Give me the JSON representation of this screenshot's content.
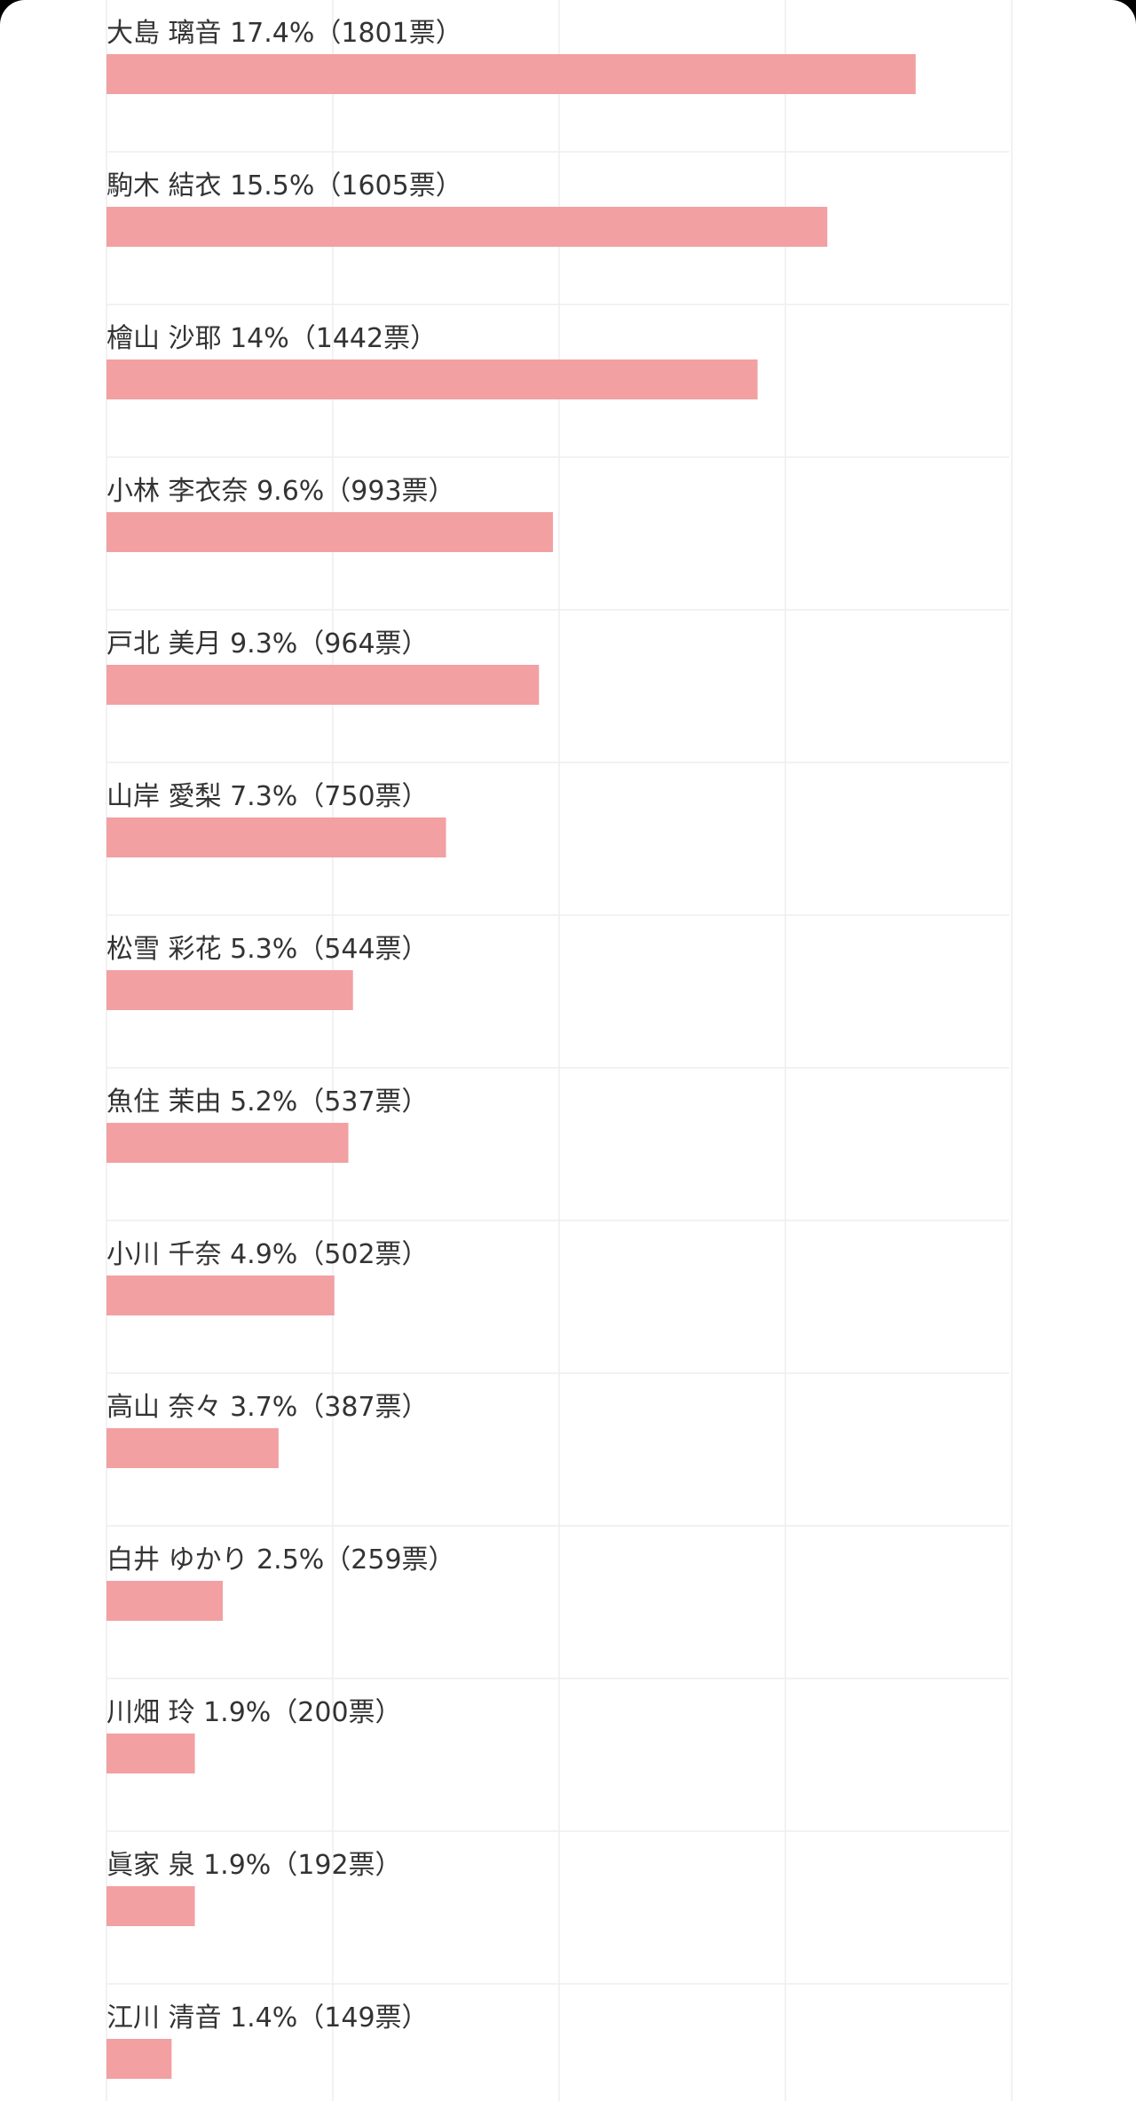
{
  "chart_data": {
    "type": "bar",
    "orientation": "horizontal",
    "bar_color": "#f2a0a2",
    "grid_color": "#eeeeee",
    "grid": true,
    "xlim": [
      0,
      20
    ],
    "categories": [
      "大島 璃音",
      "駒木 結衣",
      "檜山 沙耶",
      "小林 李衣奈",
      "戸北 美月",
      "山岸 愛梨",
      "松雪 彩花",
      "魚住 茉由",
      "小川 千奈",
      "高山 奈々",
      "白井 ゆかり",
      "川畑 玲",
      "眞家 泉",
      "江川 清音"
    ],
    "values": [
      17.4,
      15.5,
      14,
      9.6,
      9.3,
      7.3,
      5.3,
      5.2,
      4.9,
      3.7,
      2.5,
      1.9,
      1.9,
      1.4
    ],
    "votes": [
      1801,
      1605,
      1442,
      993,
      964,
      750,
      544,
      537,
      502,
      387,
      259,
      200,
      192,
      149
    ],
    "labels": [
      "大島 璃音 17.4%（1801票）",
      "駒木 結衣 15.5%（1605票）",
      "檜山 沙耶 14%（1442票）",
      "小林 李衣奈 9.6%（993票）",
      "戸北 美月 9.3%（964票）",
      "山岸 愛梨 7.3%（750票）",
      "松雪 彩花 5.3%（544票）",
      "魚住 茉由 5.2%（537票）",
      "小川 千奈 4.9%（502票）",
      "高山 奈々 3.7%（387票）",
      "白井 ゆかり 2.5%（259票）",
      "川畑 玲 1.9%（200票）",
      "眞家 泉 1.9%（192票）",
      "江川 清音 1.4%（149票）"
    ]
  }
}
